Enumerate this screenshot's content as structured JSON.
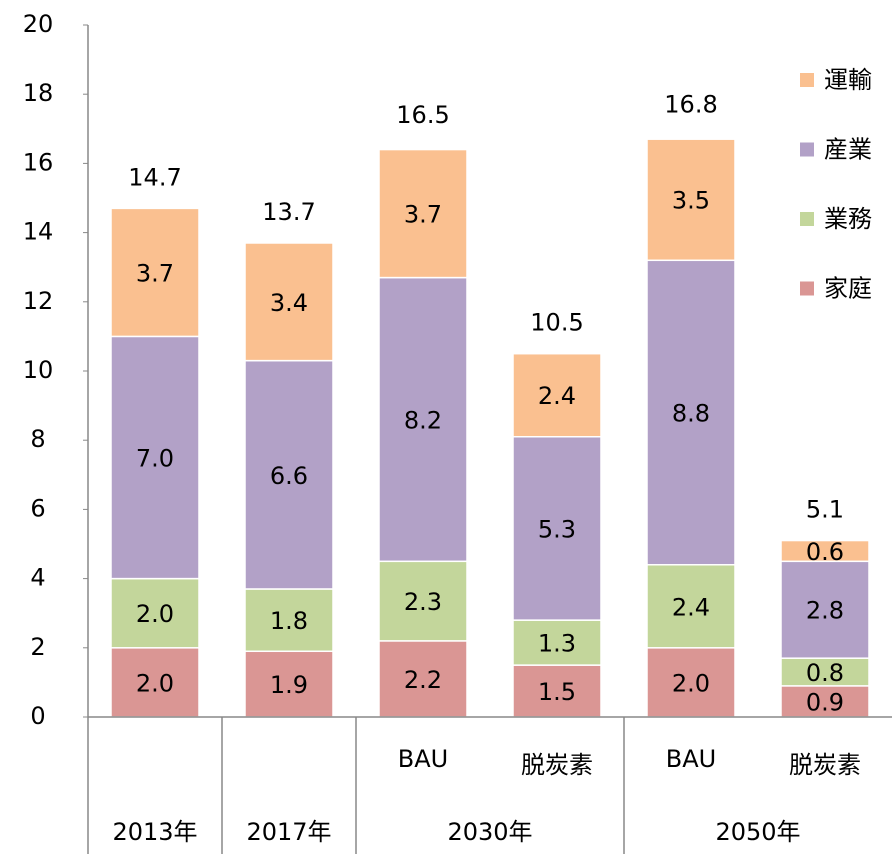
{
  "chart_data": {
    "type": "stacked_bar",
    "categories": [
      null,
      null,
      "BAU",
      "脱炭素",
      "BAU",
      "脱炭素"
    ],
    "groups": [
      {
        "label": "2013年",
        "span": 1
      },
      {
        "label": "2017年",
        "span": 1
      },
      {
        "label": "2030年",
        "span": 2
      },
      {
        "label": "2050年",
        "span": 2
      }
    ],
    "series": [
      {
        "name": "家庭",
        "color": "#da9694",
        "values": [
          2.0,
          1.9,
          2.2,
          1.5,
          2.0,
          0.9
        ],
        "value_labels": [
          "2.0",
          "1.9",
          "2.2",
          "1.5",
          "2.0",
          "0.9"
        ]
      },
      {
        "name": "業務",
        "color": "#c3d69b",
        "values": [
          2.0,
          1.8,
          2.3,
          1.3,
          2.4,
          0.8
        ],
        "value_labels": [
          "2.0",
          "1.8",
          "2.3",
          "1.3",
          "2.4",
          "0.8"
        ]
      },
      {
        "name": "産業",
        "color": "#b2a1c7",
        "values": [
          7.0,
          6.6,
          8.2,
          5.3,
          8.8,
          2.8
        ],
        "value_labels": [
          "7.0",
          "6.6",
          "8.2",
          "5.3",
          "8.8",
          "2.8"
        ]
      },
      {
        "name": "運輸",
        "color": "#fac090",
        "values": [
          3.7,
          3.4,
          3.7,
          2.4,
          3.5,
          0.6
        ],
        "value_labels": [
          "3.7",
          "3.4",
          "3.7",
          "2.4",
          "3.5",
          "0.6"
        ]
      }
    ],
    "totals": [
      14.7,
      13.7,
      16.5,
      10.5,
      16.8,
      5.1
    ],
    "ylim": [
      0,
      20
    ],
    "yticks": [
      0,
      2,
      4,
      6,
      8,
      10,
      12,
      14,
      16,
      18,
      20
    ],
    "legend": "right"
  }
}
